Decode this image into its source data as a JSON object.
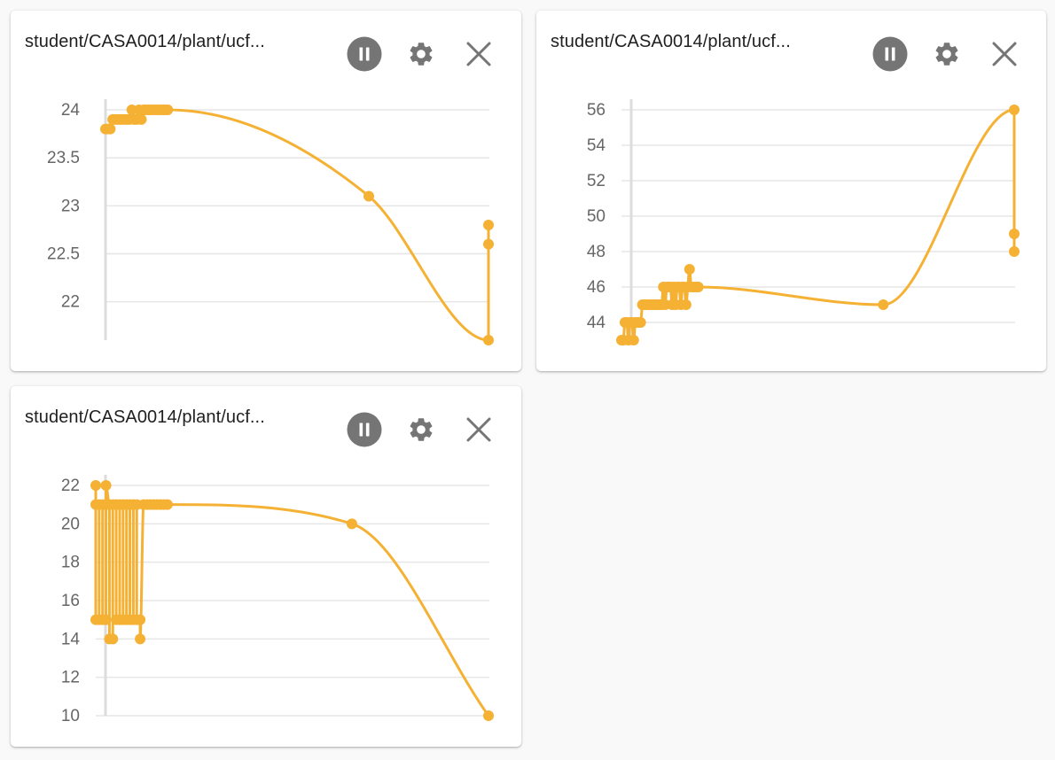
{
  "colors": {
    "series": "#f5b133",
    "grid": "#e6e6e6",
    "axis": "#dcdcdc",
    "tick_text": "#666666",
    "icon": "#757575"
  },
  "panels": [
    {
      "title": "student/CASA0014/plant/ucf...",
      "buttons": {
        "pause": "pause-icon",
        "settings": "gear-icon",
        "close": "close-icon"
      },
      "chart_data": {
        "type": "line",
        "ylim": [
          21.6,
          24
        ],
        "yticks": [
          24,
          23.5,
          23,
          22.5,
          22
        ],
        "ytick_labels": [
          "24",
          "23.5",
          "23",
          "22.5",
          "22"
        ],
        "series": [
          {
            "x": [
              0,
              1,
              2,
              3,
              4,
              5,
              6,
              7,
              8,
              9,
              10,
              11,
              12,
              13,
              14,
              15,
              16,
              17,
              18,
              19,
              20,
              21,
              22,
              23,
              24,
              25,
              26,
              110,
              160,
              160,
              160
            ],
            "y": [
              23.8,
              23.8,
              23.8,
              23.9,
              23.9,
              23.9,
              23.9,
              23.9,
              23.9,
              23.9,
              23.9,
              24,
              23.9,
              23.9,
              24,
              23.9,
              24,
              24,
              24,
              24,
              24,
              24,
              24,
              24,
              24,
              24,
              24,
              23.1,
              21.6,
              22.6,
              22.8
            ]
          }
        ]
      }
    },
    {
      "title": "student/CASA0014/plant/ucf...",
      "buttons": {
        "pause": "pause-icon",
        "settings": "gear-icon",
        "close": "close-icon"
      },
      "chart_data": {
        "type": "line",
        "ylim": [
          43,
          56
        ],
        "yticks": [
          56,
          54,
          52,
          50,
          48,
          46,
          44
        ],
        "ytick_labels": [
          "56",
          "54",
          "52",
          "50",
          "48",
          "46",
          "44"
        ],
        "series": [
          {
            "x": [
              0,
              1,
              2,
              3,
              4,
              5,
              6,
              7,
              8,
              9,
              10,
              11,
              12,
              13,
              14,
              15,
              16,
              17,
              18,
              19,
              20,
              21,
              22,
              23,
              24,
              25,
              26,
              27,
              28,
              29,
              30,
              31,
              32,
              33,
              34,
              35,
              36,
              37,
              38,
              39,
              40,
              41,
              42,
              43,
              44,
              150,
              225,
              225,
              225
            ],
            "y": [
              43,
              43,
              44,
              44,
              43,
              44,
              44,
              43,
              44,
              44,
              44,
              44,
              45,
              45,
              45,
              45,
              45,
              45,
              45,
              45,
              45,
              45,
              45,
              45,
              46,
              45,
              46,
              46,
              46,
              45,
              46,
              45,
              46,
              46,
              45,
              46,
              46,
              45,
              46,
              47,
              46,
              46,
              46,
              46,
              46,
              45,
              56,
              49,
              48
            ]
          }
        ]
      }
    },
    {
      "title": "student/CASA0014/plant/ucf...",
      "buttons": {
        "pause": "pause-icon",
        "settings": "gear-icon",
        "close": "close-icon"
      },
      "chart_data": {
        "type": "line",
        "ylim": [
          10,
          22
        ],
        "yticks": [
          22,
          20,
          18,
          16,
          14,
          12,
          10
        ],
        "ytick_labels": [
          "22",
          "20",
          "18",
          "16",
          "14",
          "12",
          "10"
        ],
        "series": [
          {
            "x": [
              0,
              0,
              0,
              2,
              2,
              4,
              4,
              6,
              6,
              6,
              8,
              8,
              10,
              10,
              12,
              12,
              14,
              14,
              16,
              16,
              18,
              18,
              20,
              20,
              22,
              22,
              24,
              24,
              26,
              26,
              28,
              30,
              32,
              34,
              36,
              38,
              40,
              42,
              150,
              230
            ],
            "y": [
              22,
              21,
              15,
              15,
              21,
              21,
              15,
              15,
              21,
              22,
              21,
              14,
              14,
              21,
              21,
              15,
              15,
              21,
              21,
              15,
              15,
              21,
              21,
              15,
              15,
              21,
              21,
              15,
              15,
              14,
              21,
              21,
              21,
              21,
              21,
              21,
              21,
              21,
              20,
              10
            ]
          }
        ]
      }
    }
  ]
}
